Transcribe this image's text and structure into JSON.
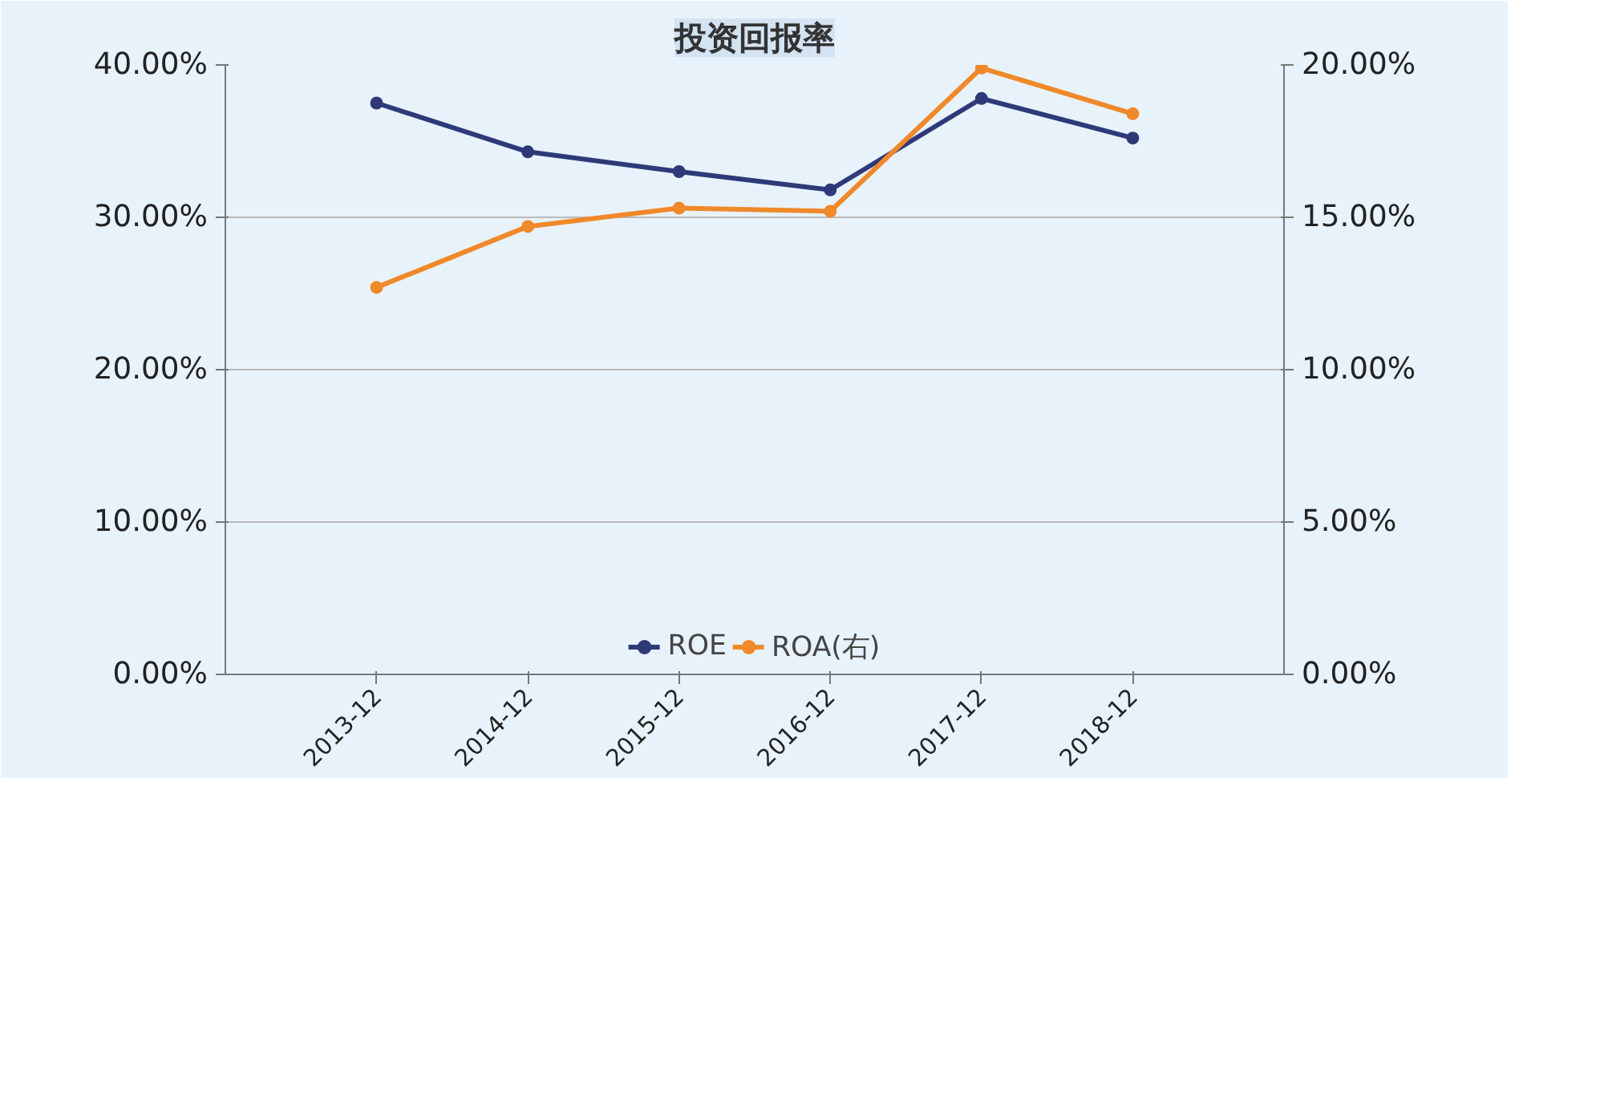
{
  "chart_data": {
    "type": "line",
    "title": "投资回报率",
    "categories": [
      "2013-12",
      "2014-12",
      "2015-12",
      "2016-12",
      "2017-12",
      "2018-12"
    ],
    "series": [
      {
        "name": "ROE",
        "color": "#2e3a78",
        "values": [
          37.5,
          34.3,
          33,
          31.8,
          37.8,
          35.2
        ]
      },
      {
        "name": "ROA(右)",
        "color": "#f0892a",
        "axis": "y2",
        "values": [
          12.7,
          14.7,
          15.3,
          15.2,
          19.9,
          18.4
        ]
      }
    ],
    "ylim": [
      0,
      40
    ],
    "yticks": [
      {
        "value": 0,
        "label": "0.00%"
      },
      {
        "value": 10,
        "label": "10.00%"
      },
      {
        "value": 20,
        "label": "20.00%"
      },
      {
        "value": 30,
        "label": "30.00%"
      },
      {
        "value": 40,
        "label": "40.00%"
      }
    ],
    "y2lim": [
      0,
      20
    ],
    "y2ticks": [
      {
        "value": 0,
        "label": "0.00%"
      },
      {
        "value": 5,
        "label": "5.00%"
      },
      {
        "value": 10,
        "label": "10.00%"
      },
      {
        "value": 15,
        "label": "15.00%"
      },
      {
        "value": 20,
        "label": "20.00%"
      }
    ],
    "grid": "y",
    "legend": "bottom",
    "marker": "circle",
    "line_style": "solid"
  }
}
